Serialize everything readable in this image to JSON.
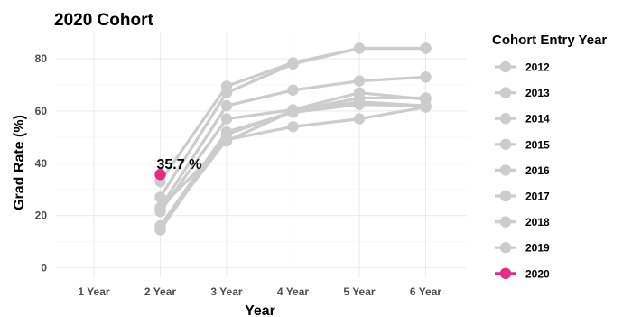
{
  "chart_data": {
    "type": "line",
    "title": "2020 Cohort",
    "xlabel": "Year",
    "ylabel": "Grad Rate (%)",
    "categories": [
      "1 Year",
      "2 Year",
      "3 Year",
      "4 Year",
      "5 Year",
      "6 Year"
    ],
    "ylim": [
      0,
      88
    ],
    "yticks": [
      0,
      20,
      40,
      60,
      80
    ],
    "grid": true,
    "legend": {
      "title": "Cohort Entry Year",
      "placement": "right"
    },
    "colors": {
      "highlight": "#e7298a",
      "muted": "#cccccc"
    },
    "highlight_series": "2020",
    "series": [
      {
        "name": "2012",
        "values": [
          null,
          23,
          62,
          68,
          71.5,
          73
        ]
      },
      {
        "name": "2013",
        "values": [
          null,
          27,
          67,
          78,
          84,
          84
        ]
      },
      {
        "name": "2014",
        "values": [
          null,
          33,
          69.5,
          78.5,
          84,
          84
        ]
      },
      {
        "name": "2015",
        "values": [
          null,
          21.5,
          57,
          60.5,
          67,
          64.5
        ]
      },
      {
        "name": "2016",
        "values": [
          null,
          16,
          52,
          59.5,
          62.5,
          62
        ]
      },
      {
        "name": "2017",
        "values": [
          null,
          14.5,
          51,
          60,
          65,
          65
        ]
      },
      {
        "name": "2018",
        "values": [
          null,
          23,
          48.5,
          60,
          63.5,
          62
        ]
      },
      {
        "name": "2019",
        "values": [
          null,
          16,
          49,
          54,
          57,
          61.5
        ]
      },
      {
        "name": "2020",
        "values": [
          null,
          35.7,
          null,
          null,
          null,
          null
        ]
      }
    ],
    "annotations": [
      {
        "series": "2020",
        "x": "2 Year",
        "y": 35.7,
        "text": "35.7 %"
      }
    ]
  }
}
